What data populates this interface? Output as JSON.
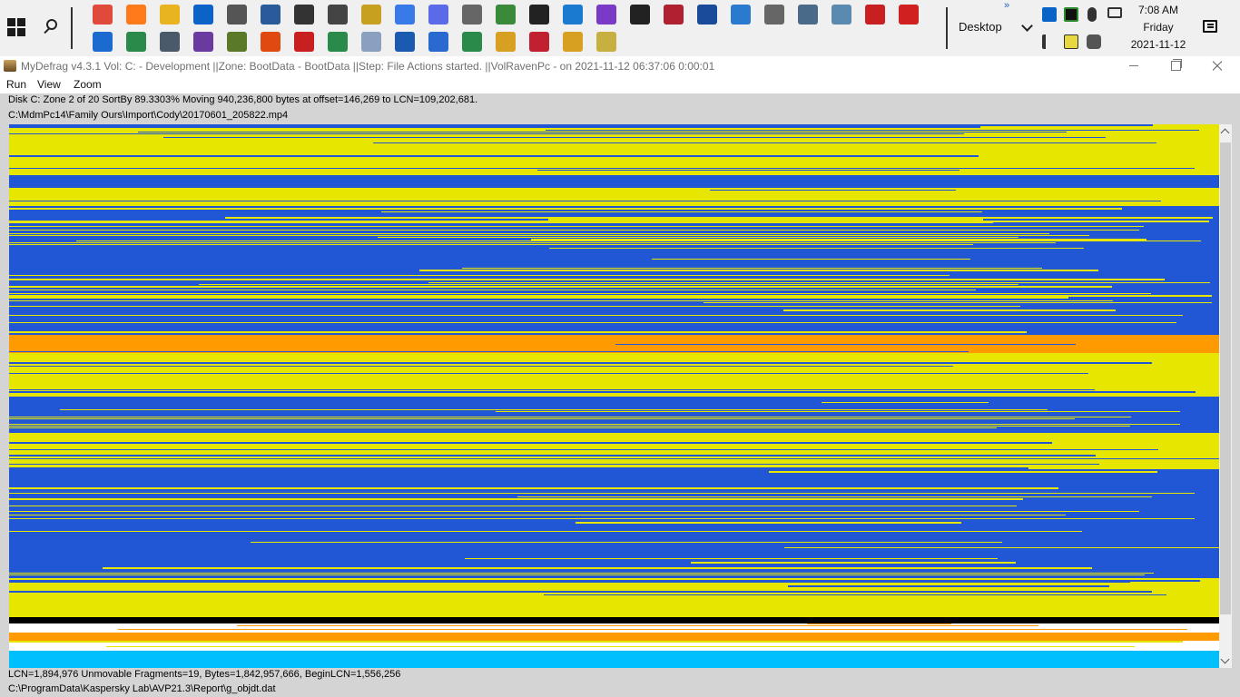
{
  "taskbar": {
    "pinned_row1": [
      "chrome-icon",
      "firefox-icon",
      "file-explorer-icon",
      "outlook-icon",
      "gimp-icon",
      "dev-tool-icon",
      "graduation-cap-icon",
      "printer-icon",
      "notes-app-icon",
      "messenger-icon",
      "discord-icon",
      "check-app-icon",
      "chart-app-icon",
      "console-icon",
      "vscode-icon",
      "visual-studio-icon",
      "console-icon",
      "delete-tool-icon",
      "powershell-icon",
      "calculator-icon",
      "settings-icon",
      "system-app-icon",
      "remote-app-icon",
      "acrobat-icon",
      "pdf-factory-icon"
    ],
    "pinned_row2": [
      "todo-icon",
      "sheets-icon",
      "network-icon",
      "vs-app-icon",
      "tree-app-icon",
      "office-icon",
      "acrobat-icon",
      "excel-icon",
      "notebook-icon",
      "word-icon",
      "document-icon",
      "spreadsheet-icon",
      "help-icon",
      "delete-tool-icon",
      "help-icon",
      "mydefrag-icon"
    ],
    "desktop_toolbar_label": "Desktop",
    "overflow_label": "»",
    "clock": {
      "time": "7:08 AM",
      "day": "Friday",
      "date": "2021-11-12"
    }
  },
  "window": {
    "title": "MyDefrag v4.3.1    Vol: C: - Development ||Zone: BootData - BootData ||Step: File Actions started. ||VolRavenPc -  on 2021-11-12 06:37:06 0:00:01",
    "menu": [
      "Run",
      "View",
      "Zoom"
    ]
  },
  "status": {
    "line1": "Disk C:    Zone 2 of 20    SortBy    89.3303%    Moving 940,236,800 bytes at offset=146,269 to LCN=109,202,681.",
    "line2": "C:\\MdmPc14\\Family Ours\\Import\\Cody\\20170601_205822.mp4",
    "bottom1": "LCN=1,894,976     Unmovable     Fragments=19, Bytes=1,842,957,666, BeginLCN=1,556,256",
    "bottom2": "C:\\ProgramData\\Kaspersky Lab\\AVP21.3\\Report\\g_objdt.dat"
  },
  "diskmap_colors": {
    "data": "#2156d4",
    "zone": "#e6e600",
    "moving": "#ff9a00",
    "system": "#00bfff",
    "unmovable": "#000000",
    "free": "#ffffff"
  }
}
